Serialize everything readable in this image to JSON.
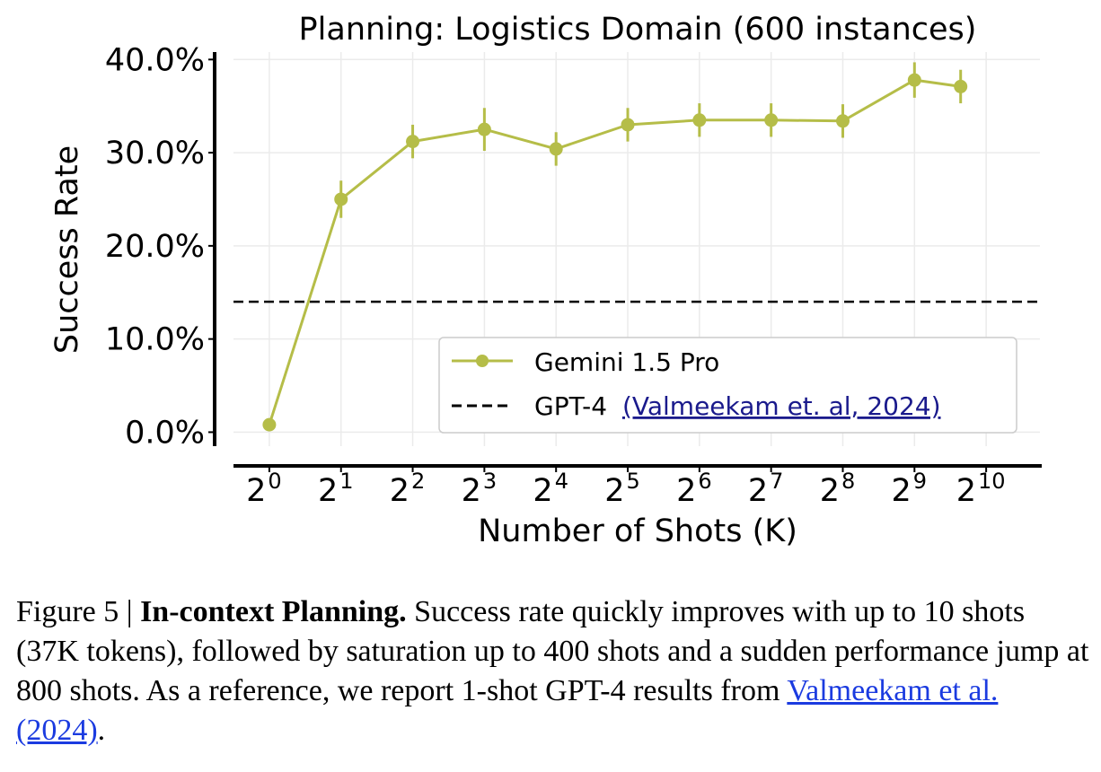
{
  "chart_data": {
    "type": "line",
    "title": "Planning: Logistics Domain (600 instances)",
    "xlabel": "Number of Shots (K)",
    "ylabel": "Success Rate",
    "x_scale": "log2",
    "x_ticks": [
      {
        "base": "2",
        "exp": "0",
        "value": 1
      },
      {
        "base": "2",
        "exp": "1",
        "value": 2
      },
      {
        "base": "2",
        "exp": "2",
        "value": 4
      },
      {
        "base": "2",
        "exp": "3",
        "value": 8
      },
      {
        "base": "2",
        "exp": "4",
        "value": 16
      },
      {
        "base": "2",
        "exp": "5",
        "value": 32
      },
      {
        "base": "2",
        "exp": "6",
        "value": 64
      },
      {
        "base": "2",
        "exp": "7",
        "value": 128
      },
      {
        "base": "2",
        "exp": "8",
        "value": 256
      },
      {
        "base": "2",
        "exp": "9",
        "value": 512
      },
      {
        "base": "2",
        "exp": "10",
        "value": 1024
      }
    ],
    "y_ticks": [
      "0.0%",
      "10.0%",
      "20.0%",
      "30.0%",
      "40.0%"
    ],
    "ylim": [
      -1.5,
      40.8
    ],
    "xlim_log2": [
      -0.5,
      10.75
    ],
    "grid": true,
    "legend_position": "lower-right",
    "series": [
      {
        "name": "Gemini 1.5 Pro",
        "color": "#b5bd48",
        "marker": "circle",
        "x": [
          1,
          2,
          4,
          8,
          16,
          32,
          64,
          128,
          256,
          512,
          800
        ],
        "y": [
          0.8,
          25.0,
          31.2,
          32.5,
          30.4,
          33.0,
          33.5,
          33.5,
          33.4,
          37.8,
          37.1
        ],
        "error": [
          0.0,
          2.0,
          1.8,
          2.3,
          1.8,
          1.8,
          1.8,
          1.8,
          1.8,
          1.9,
          1.8
        ]
      }
    ],
    "reference_line": {
      "name": "GPT-4",
      "citation": "(Valmeekam et. al, 2024)",
      "style": "dashed",
      "color": "#000000",
      "y": 14.0
    }
  },
  "caption": {
    "prefix": "Figure 5 | ",
    "bold": "In-context Planning.",
    "body": " Success rate quickly improves with up to 10 shots (37K tokens), followed by saturation up to 400 shots and a sudden performance jump at 800 shots. As a reference, we report 1-shot GPT-4 results from ",
    "link": "Valmeekam et al. (2024)",
    "suffix": "."
  }
}
